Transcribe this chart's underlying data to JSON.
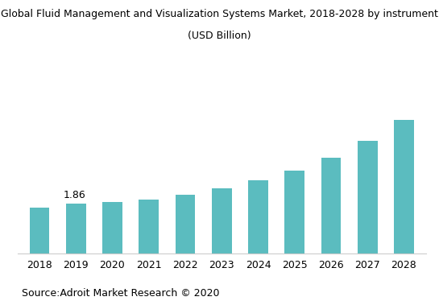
{
  "title_line1": "Global Fluid Management and Visualization Systems Market, 2018-2028 by instrument",
  "title_line2": "(USD Billion)",
  "years": [
    2018,
    2019,
    2020,
    2021,
    2022,
    2023,
    2024,
    2025,
    2026,
    2027,
    2028
  ],
  "values": [
    1.72,
    1.86,
    1.93,
    2.02,
    2.18,
    2.42,
    2.72,
    3.1,
    3.58,
    4.2,
    5.0
  ],
  "bar_color": "#5bbcbf",
  "annotation_text": "1.86",
  "annotation_year_idx": 1,
  "annotation_value": 1.86,
  "source_text": "Source:Adroit Market Research © 2020",
  "ylim": [
    0,
    7.2
  ],
  "title_fontsize": 9,
  "tick_fontsize": 9,
  "source_fontsize": 9,
  "background_color": "#ffffff",
  "plot_bg_color": "#ffffff",
  "border_color": "#cccccc"
}
